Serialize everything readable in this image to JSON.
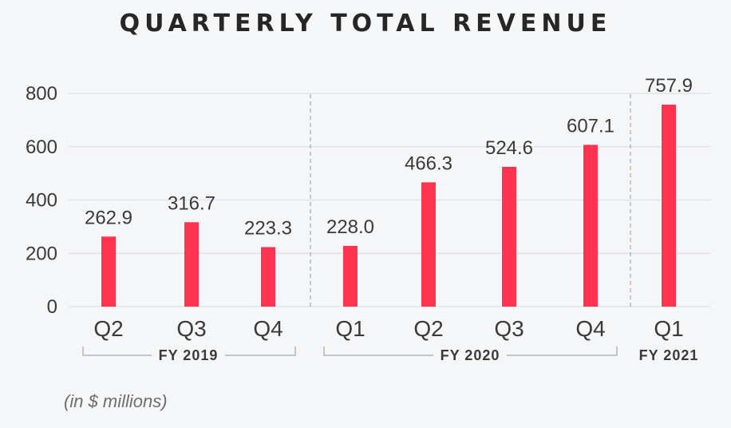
{
  "title": "QUARTERLY TOTAL REVENUE",
  "note": "(in $ millions)",
  "colors": {
    "bar": "#ff334f",
    "text": "#3a3a3a",
    "grid": "#e2e3e6"
  },
  "chart_data": {
    "type": "bar",
    "title": "QUARTERLY TOTAL REVENUE",
    "categories": [
      "Q2",
      "Q3",
      "Q4",
      "Q1",
      "Q2",
      "Q3",
      "Q4",
      "Q1"
    ],
    "values": [
      262.9,
      316.7,
      223.3,
      228.0,
      466.3,
      524.6,
      607.1,
      757.9
    ],
    "value_labels": [
      "262.9",
      "316.7",
      "223.3",
      "228.0",
      "466.3",
      "524.6",
      "607.1",
      "757.9"
    ],
    "ylim": [
      0,
      800
    ],
    "yticks": [
      0,
      200,
      400,
      600,
      800
    ],
    "grid": true,
    "groups": [
      {
        "label": "FY 2019",
        "start": 0,
        "end": 2
      },
      {
        "label": "FY 2020",
        "start": 3,
        "end": 6
      },
      {
        "label": "FY 2021",
        "start": 7,
        "end": 7
      }
    ]
  }
}
